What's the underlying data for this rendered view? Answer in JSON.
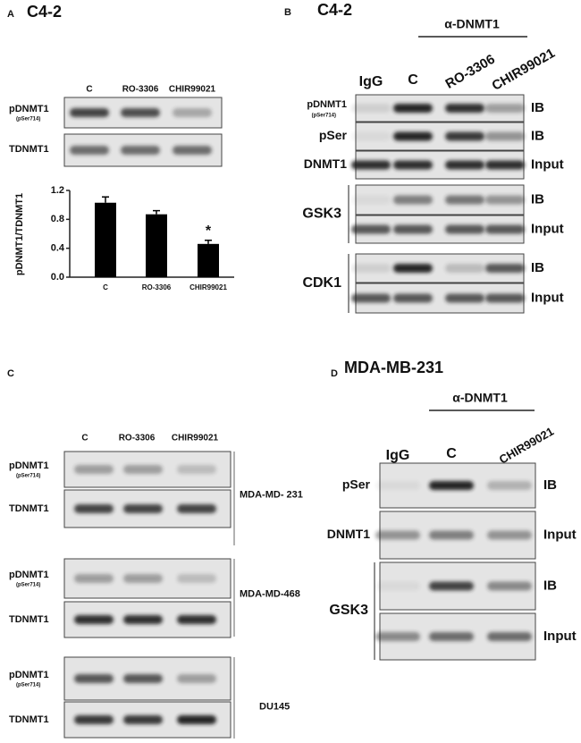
{
  "panels": {
    "A": {
      "letter": "A",
      "title": "C4-2",
      "columns": [
        "C",
        "RO-3306",
        "CHIR99021"
      ],
      "rows": [
        {
          "label": "pDNMT1",
          "sublabel": "(pSer714)"
        },
        {
          "label": "TDNMT1"
        }
      ]
    },
    "B": {
      "letter": "B",
      "title": "C4-2",
      "antibody": "α-DNMT1",
      "columns": [
        "IgG",
        "C",
        "RO-3306",
        "CHIR99021"
      ],
      "rows": [
        {
          "label": "pDNMT1",
          "sublabel": "(pSer714)",
          "type": "IB"
        },
        {
          "label": "pSer",
          "type": "IB"
        },
        {
          "label": "DNMT1",
          "type": "Input"
        },
        {
          "type": "IB"
        },
        {
          "type": "Input"
        },
        {
          "type": "IB"
        },
        {
          "type": "Input"
        }
      ],
      "groups": [
        {
          "label": "GSK3"
        },
        {
          "label": "CDK1"
        }
      ]
    },
    "C": {
      "letter": "C",
      "columns": [
        "C",
        "RO-3306",
        "CHIR99021"
      ],
      "cell_lines": [
        {
          "name": "MDA-MD- 231",
          "rows": [
            {
              "label": "pDNMT1",
              "sublabel": "(pSer714)"
            },
            {
              "label": "TDNMT1"
            }
          ]
        },
        {
          "name": "MDA-MD-468",
          "rows": [
            {
              "label": "pDNMT1",
              "sublabel": "(pSer714)"
            },
            {
              "label": "TDNMT1"
            }
          ]
        },
        {
          "name": "DU145",
          "rows": [
            {
              "label": "pDNMT1",
              "sublabel": "(pSer714)"
            },
            {
              "label": "TDNMT1"
            }
          ]
        }
      ]
    },
    "D": {
      "letter": "D",
      "title": "MDA-MB-231",
      "antibody": "α-DNMT1",
      "columns": [
        "IgG",
        "C",
        "CHIR99021"
      ],
      "rows": [
        {
          "label": "pSer",
          "type": "IB"
        },
        {
          "label": "DNMT1",
          "type": "Input"
        },
        {
          "type": "IB"
        },
        {
          "type": "Input"
        }
      ],
      "groups": [
        {
          "label": "GSK3"
        }
      ]
    }
  },
  "chart_data": {
    "type": "bar",
    "ylabel": "pDNMT1/TDNMT1",
    "categories": [
      "C",
      "RO-3306",
      "CHIR99021"
    ],
    "values": [
      1.03,
      0.87,
      0.46
    ],
    "errors": [
      0.08,
      0.05,
      0.05
    ],
    "color": "#000000",
    "annotations": [
      {
        "text": "*",
        "category": "CHIR99021"
      }
    ],
    "ylim": [
      0,
      1.2
    ],
    "yticks": [
      {
        "value": 0,
        "label": "0.0"
      },
      0.4,
      0.8,
      1.2
    ]
  }
}
